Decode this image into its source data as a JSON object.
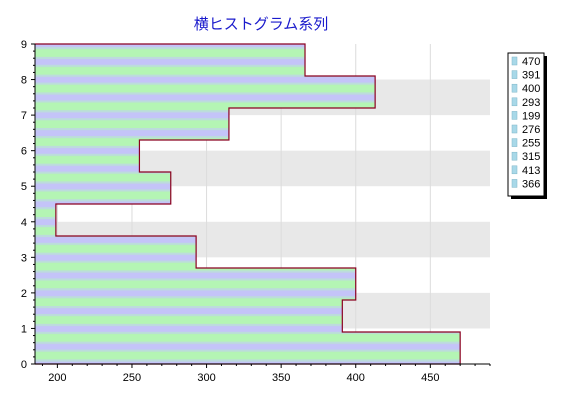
{
  "chart_data": {
    "type": "bar",
    "orientation": "horizontal",
    "style": "step-histogram",
    "title": "横ヒストグラム系列",
    "xlabel": "",
    "ylabel": "",
    "categories": [
      "0",
      "1",
      "2",
      "3",
      "4",
      "5",
      "6",
      "7",
      "8",
      "9"
    ],
    "values": [
      470,
      391,
      400,
      293,
      199,
      276,
      255,
      315,
      413,
      366
    ],
    "xlim": [
      185,
      490
    ],
    "ylim": [
      0,
      9
    ],
    "x_ticks": [
      200,
      250,
      300,
      350,
      400,
      450
    ],
    "y_ticks": [
      0,
      1,
      2,
      3,
      4,
      5,
      6,
      7,
      8,
      9
    ],
    "grid": "vertical lines, alternating horizontal bands",
    "legend_position": "right",
    "legend_entries": [
      "470",
      "391",
      "400",
      "293",
      "199",
      "276",
      "255",
      "315",
      "413",
      "366"
    ],
    "colors": {
      "outline": "#8b0020",
      "fill_green": "#b4f5b4",
      "fill_blue": "#c4c4f8",
      "band": "#e8e8e8",
      "title": "#1a1acc"
    }
  }
}
